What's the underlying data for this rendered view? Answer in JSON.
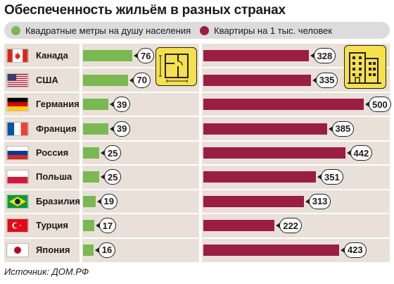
{
  "title": "Обеспеченность жильём в разных странах",
  "legend": {
    "green_label": "Квадратные метры на душу населения",
    "red_label": "Квартиры на 1 тыс. человек"
  },
  "colors": {
    "green": "#79b950",
    "red": "#9b1d43",
    "row_bg": "#e9e0d8",
    "pictogram": "#f6e04b"
  },
  "icons": [
    "floor-plan-icon",
    "apartment-building-icon"
  ],
  "chart_data": {
    "type": "bar",
    "categories": [
      "Канада",
      "США",
      "Германия",
      "Франция",
      "Россия",
      "Польша",
      "Бразилия",
      "Турция",
      "Япония"
    ],
    "series": [
      {
        "name": "Квадратные метры на душу населения",
        "values": [
          76,
          70,
          39,
          39,
          25,
          25,
          19,
          17,
          16
        ]
      },
      {
        "name": "Квартиры на 1 тыс. человек",
        "values": [
          328,
          335,
          500,
          385,
          442,
          351,
          313,
          222,
          423
        ]
      }
    ],
    "title": "Обеспеченность жильём в разных странах",
    "xlabel": "",
    "ylabel": "",
    "legend": "top"
  },
  "source": "Источник: ДОМ.РФ"
}
